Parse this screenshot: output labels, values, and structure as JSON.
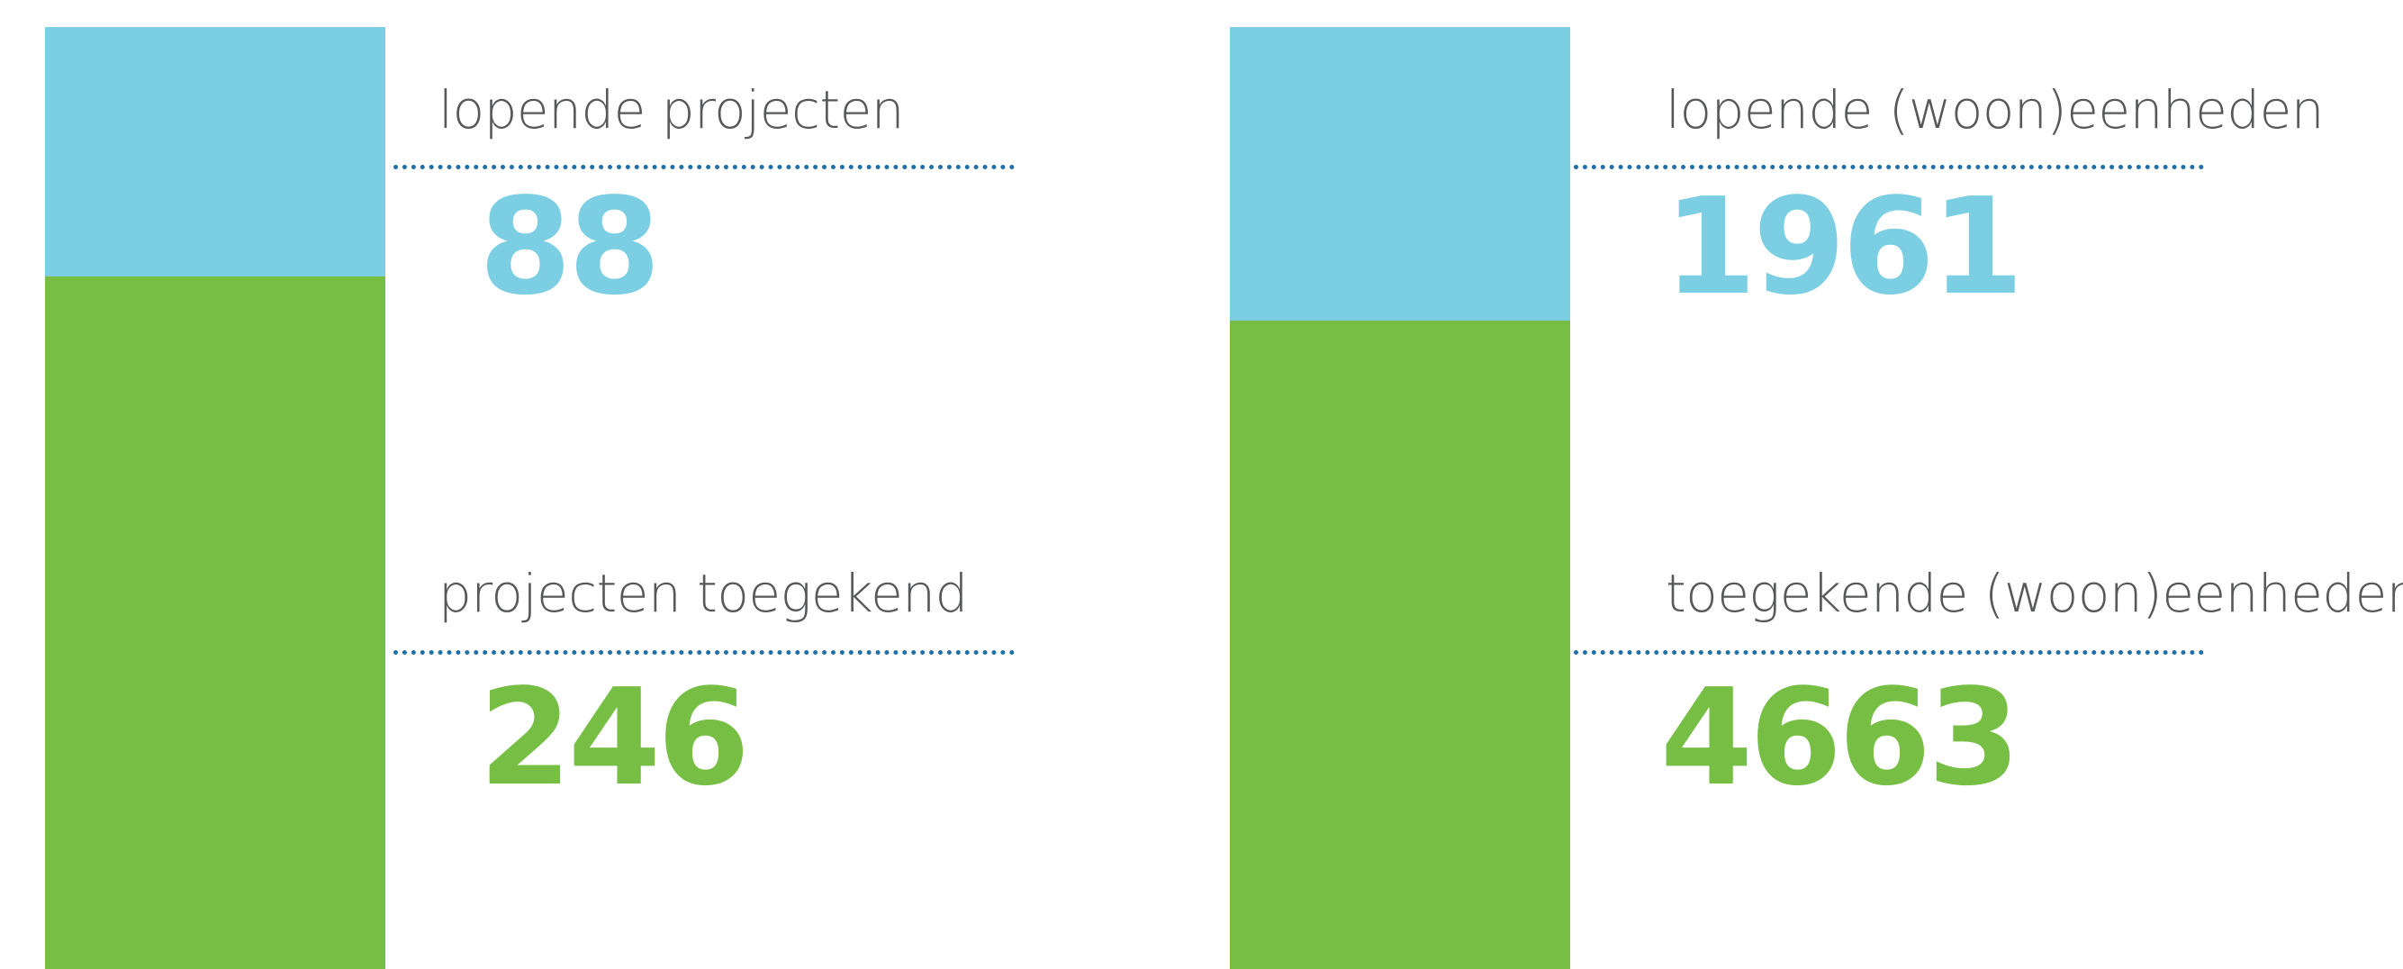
{
  "colors": {
    "running": "#7ccfe2",
    "granted": "#76bf44",
    "rule": "#1f6fa8",
    "label": "#57585a"
  },
  "chart_data": [
    {
      "type": "bar",
      "stacked": true,
      "categories": [
        "projecten"
      ],
      "series": [
        {
          "name": "projecten toegekend",
          "value": 246,
          "text": "246",
          "color": "#76bf44"
        },
        {
          "name": "lopende projecten",
          "value": 88,
          "text": "88",
          "color": "#7ccfe2"
        }
      ],
      "total": 246,
      "grid": false,
      "legend": "none"
    },
    {
      "type": "bar",
      "stacked": true,
      "categories": [
        "(woon)eenheden"
      ],
      "series": [
        {
          "name": "toegekende (woon)eenheden",
          "value": 4663,
          "text": "4663",
          "color": "#76bf44"
        },
        {
          "name": "lopende (woon)eenheden",
          "value": 1961,
          "text": "1961",
          "color": "#7ccfe2"
        }
      ],
      "total": 4663,
      "grid": false,
      "legend": "none"
    }
  ]
}
